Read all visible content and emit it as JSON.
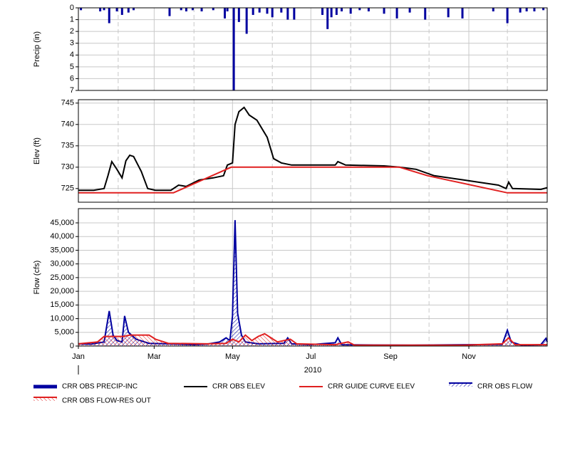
{
  "chart_data": [
    {
      "type": "bar",
      "ylabel": "Precip (in)",
      "ylim": [
        0,
        7
      ],
      "invert": true,
      "yticks": [
        0,
        1,
        2,
        3,
        4,
        5,
        6,
        7
      ],
      "xlim": [
        0,
        365
      ],
      "xticks": [
        0,
        59,
        120,
        181,
        243,
        304
      ],
      "minor_xticks": [
        31,
        90,
        151,
        212,
        273,
        334
      ],
      "grid": true,
      "series": [
        {
          "name": "CRR OBS PRECIP-INC",
          "color": "#0000a0",
          "x": [
            2,
            17,
            20,
            24,
            30,
            34,
            39,
            43,
            71,
            80,
            84,
            89,
            96,
            105,
            114,
            116,
            121,
            125,
            131,
            136,
            141,
            147,
            151,
            158,
            163,
            168,
            190,
            194,
            197,
            201,
            205,
            212,
            219,
            226,
            238,
            248,
            258,
            270,
            288,
            299,
            323,
            334,
            344,
            349,
            355,
            362
          ],
          "values": [
            0.2,
            0.3,
            0.2,
            1.3,
            0.3,
            0.6,
            0.4,
            0.2,
            0.7,
            0.2,
            0.3,
            0.2,
            0.3,
            0.2,
            0.9,
            0.3,
            7.0,
            1.2,
            2.2,
            0.6,
            0.4,
            0.5,
            0.8,
            0.4,
            1.0,
            1.0,
            0.6,
            1.8,
            0.8,
            0.6,
            0.3,
            0.5,
            0.2,
            0.3,
            0.5,
            0.9,
            0.4,
            1.0,
            0.8,
            0.9,
            0.3,
            1.3,
            0.4,
            0.3,
            0.3,
            0.2
          ]
        }
      ]
    },
    {
      "type": "line",
      "ylabel": "Elev (ft)",
      "ylim": [
        721.8,
        745.8
      ],
      "yticks": [
        725,
        730,
        735,
        740,
        745
      ],
      "xlim": [
        0,
        365
      ],
      "xticks": [
        0,
        59,
        120,
        181,
        243,
        304
      ],
      "minor_xticks": [
        31,
        90,
        151,
        212,
        273,
        334
      ],
      "grid": true,
      "series": [
        {
          "name": "CRR OBS ELEV",
          "color": "#000000",
          "x": [
            0,
            12,
            20,
            23,
            26,
            30,
            34,
            37,
            40,
            43,
            49,
            54,
            60,
            72,
            78,
            84,
            94,
            105,
            113,
            116,
            120,
            122,
            125,
            129,
            133,
            139,
            147,
            152,
            158,
            166,
            200,
            202,
            208,
            238,
            250,
            263,
            277,
            300,
            327,
            333,
            335,
            338,
            360,
            365
          ],
          "values": [
            724.6,
            724.6,
            725,
            728,
            731.3,
            729.5,
            727.5,
            731.5,
            732.8,
            732.5,
            729,
            725,
            724.6,
            724.6,
            725.8,
            725.5,
            727,
            727.5,
            728,
            730.5,
            731,
            740,
            743,
            744,
            742.2,
            741,
            737,
            732,
            731,
            730.5,
            730.5,
            731.3,
            730.5,
            730.3,
            730,
            729.5,
            728,
            727,
            725.8,
            725,
            726.5,
            725,
            724.8,
            725.2
          ]
        },
        {
          "name": "CRR GUIDE CURVE ELEV",
          "color": "#e02020",
          "x": [
            0,
            74,
            119,
            250,
            272,
            334,
            365
          ],
          "values": [
            724,
            724,
            730,
            730,
            728,
            724,
            724
          ]
        }
      ]
    },
    {
      "type": "area",
      "ylabel": "Flow (cfs)",
      "ylim": [
        0,
        50200
      ],
      "yticks": [
        0,
        {
          "value": 5000,
          "label": "5,000"
        },
        {
          "value": 10000,
          "label": "10,000"
        },
        {
          "value": 15000,
          "label": "15,000"
        },
        {
          "value": 20000,
          "label": "20,000"
        },
        {
          "value": 25000,
          "label": "25,000"
        },
        {
          "value": 30000,
          "label": "30,000"
        },
        {
          "value": 35000,
          "label": "35,000"
        },
        {
          "value": 40000,
          "label": "40,000"
        },
        {
          "value": 45000,
          "label": "45,000"
        }
      ],
      "xlim": [
        0,
        365
      ],
      "xticks": [
        {
          "value": 0,
          "label": "Jan"
        },
        {
          "value": 59,
          "label": "Mar"
        },
        {
          "value": 120,
          "label": "May"
        },
        {
          "value": 181,
          "label": "Jul"
        },
        {
          "value": 243,
          "label": "Sep"
        },
        {
          "value": 304,
          "label": "Nov"
        }
      ],
      "minor_xticks": [
        31,
        90,
        151,
        212,
        273,
        334
      ],
      "xlabel": "2010",
      "grid": true,
      "series": [
        {
          "name": "CRR OBS FLOW",
          "color": "#0000a0",
          "x": [
            0,
            10,
            20,
            24,
            27,
            30,
            34,
            36,
            39,
            45,
            55,
            70,
            90,
            100,
            110,
            115,
            118,
            120,
            122,
            124,
            127,
            130,
            140,
            160,
            163,
            166,
            180,
            200,
            202,
            205,
            230,
            260,
            300,
            330,
            334,
            337,
            345,
            360,
            364,
            365
          ],
          "values": [
            800,
            700,
            1500,
            12800,
            4000,
            2000,
            1500,
            11000,
            5000,
            2500,
            1000,
            800,
            500,
            700,
            1500,
            3000,
            2000,
            11000,
            46000,
            12000,
            4000,
            1500,
            800,
            1000,
            3000,
            800,
            500,
            1200,
            3000,
            500,
            400,
            300,
            500,
            600,
            5800,
            1500,
            300,
            500,
            2800,
            1500
          ]
        },
        {
          "name": "CRR OBS FLOW-RES OUT",
          "color": "#e02020",
          "x": [
            0,
            15,
            20,
            35,
            40,
            55,
            60,
            70,
            100,
            115,
            120,
            125,
            130,
            135,
            140,
            145,
            150,
            155,
            165,
            170,
            200,
            210,
            215,
            250,
            300,
            330,
            335,
            340,
            365
          ],
          "values": [
            800,
            1500,
            3500,
            3500,
            4000,
            4000,
            2500,
            1000,
            800,
            1000,
            2500,
            1500,
            4000,
            2000,
            3500,
            4500,
            3000,
            1500,
            2500,
            800,
            500,
            1500,
            300,
            300,
            300,
            800,
            3000,
            500,
            500
          ]
        }
      ]
    }
  ]
}
